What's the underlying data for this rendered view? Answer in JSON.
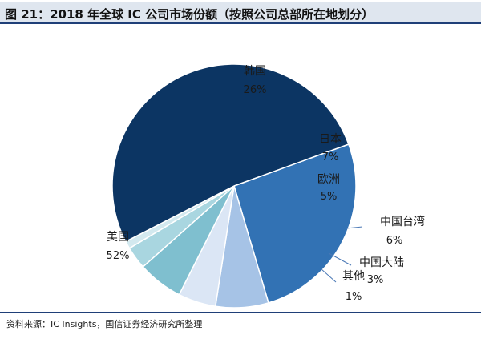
{
  "header": {
    "title": "图 21：2018 年全球 IC 公司市场份额（按照公司总部所在地划分）"
  },
  "footer": {
    "source": "资料来源：IC Insights，国信证券经济研究所整理"
  },
  "chart_data": {
    "type": "pie",
    "title": "图 21：2018 年全球 IC 公司市场份额（按照公司总部所在地划分）",
    "slices": [
      {
        "label": "韩国",
        "value": 26,
        "pct_label": "26%",
        "color": "#3272b4"
      },
      {
        "label": "日本",
        "value": 7,
        "pct_label": "7%",
        "color": "#a6c3e6"
      },
      {
        "label": "欧洲",
        "value": 5,
        "pct_label": "5%",
        "color": "#dbe6f5"
      },
      {
        "label": "中国台湾",
        "value": 6,
        "pct_label": "6%",
        "color": "#7fbfcf"
      },
      {
        "label": "中国大陆",
        "value": 3,
        "pct_label": "3%",
        "color": "#a9d6e0"
      },
      {
        "label": "其他",
        "value": 1,
        "pct_label": "1%",
        "color": "#d3e9ef"
      },
      {
        "label": "美国",
        "value": 52,
        "pct_label": "52%",
        "color": "#0c3563"
      }
    ],
    "start_angle_deg": -20,
    "direction": "clockwise",
    "legend": "none",
    "labels": "on-chart"
  }
}
